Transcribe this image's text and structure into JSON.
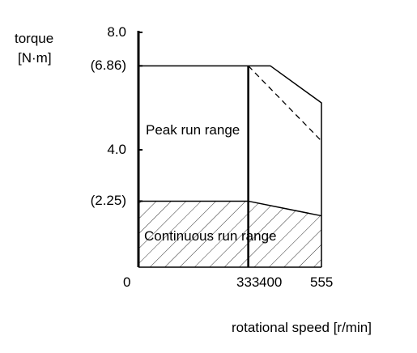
{
  "chart_data": {
    "type": "area",
    "ylabel_line1": "torque",
    "ylabel_line2": "[N·m]",
    "xlabel": "rotational speed [r/min]",
    "xlim": [
      0,
      555
    ],
    "ylim": [
      0,
      8.0
    ],
    "x_ticks": [
      {
        "value": 0,
        "label": "0"
      },
      {
        "value": 333,
        "label": "333"
      },
      {
        "value": 400,
        "label": "400"
      },
      {
        "value": 555,
        "label": "555"
      }
    ],
    "y_ticks": [
      {
        "value": 8.0,
        "label": "8.0"
      },
      {
        "value": 6.86,
        "label": "(6.86)"
      },
      {
        "value": 4.0,
        "label": "4.0"
      },
      {
        "value": 2.25,
        "label": "(2.25)"
      }
    ],
    "series": [
      {
        "name": "Peak run range",
        "points": [
          [
            0,
            6.86
          ],
          [
            333,
            6.86
          ],
          [
            400,
            6.86
          ],
          [
            555,
            5.6
          ],
          [
            555,
            0
          ]
        ],
        "dashed_segment": [
          [
            333,
            6.86
          ],
          [
            555,
            4.3
          ]
        ]
      },
      {
        "name": "Continuous run range",
        "points": [
          [
            0,
            2.25
          ],
          [
            333,
            2.25
          ],
          [
            555,
            1.75
          ],
          [
            555,
            0
          ]
        ]
      }
    ],
    "divider_speed": 333,
    "grid": false,
    "colors": {
      "line": "#000000",
      "hatch": "#333333",
      "background": "#ffffff"
    }
  }
}
